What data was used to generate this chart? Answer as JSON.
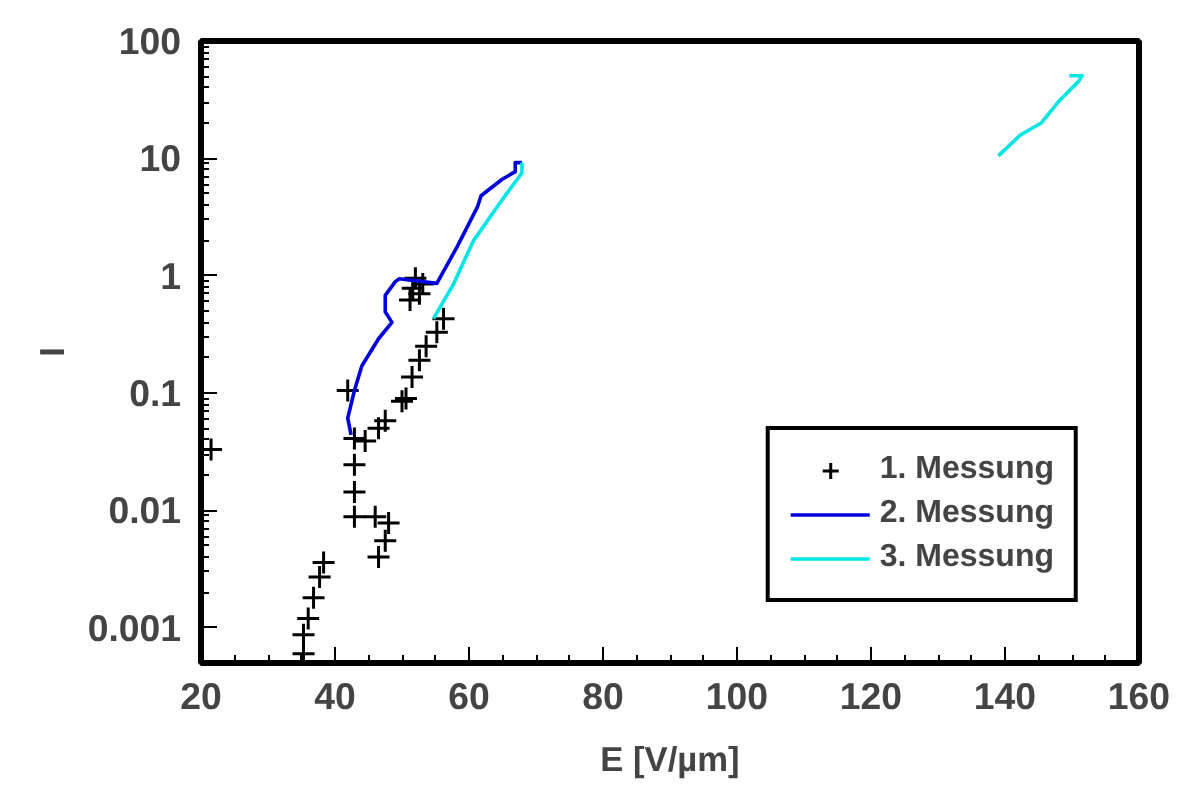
{
  "chart_data": {
    "type": "line",
    "xlabel": "E [V/µm]",
    "ylabel": "I",
    "log": "y",
    "grid": false,
    "legend": "bottom right",
    "xlim": [
      20,
      160
    ],
    "xticks": [
      20,
      40,
      60,
      80,
      100,
      120,
      140,
      160
    ],
    "ylim": [
      0.0005,
      100
    ],
    "yticks": [
      0.001,
      0.01,
      0.1,
      1,
      10,
      100
    ],
    "series": [
      {
        "name": "1. Messung",
        "type": "scatter",
        "marker": "cross",
        "color": "#000000",
        "x": [
          21.5,
          35.3,
          35.3,
          36,
          36.8,
          37.7,
          38.3,
          41.9,
          42.9,
          42.9,
          42.9,
          42.9,
          44.5,
          46.5,
          47.5,
          50,
          50.6,
          51.5,
          52.6,
          53.6,
          55.2,
          56.2,
          46,
          48,
          47.5,
          46.5,
          52,
          51.6,
          51.2,
          52.6,
          53.1
        ],
        "values": [
          0.033,
          0.0006,
          0.00087,
          0.0012,
          0.0018,
          0.0027,
          0.0036,
          0.105,
          0.041,
          0.0245,
          0.0143,
          0.0088,
          0.039,
          0.05,
          0.058,
          0.085,
          0.09,
          0.137,
          0.19,
          0.25,
          0.33,
          0.43,
          0.0088,
          0.0078,
          0.0055,
          0.004,
          0.95,
          0.78,
          0.62,
          0.7,
          0.85
        ]
      },
      {
        "name": "2. Messung",
        "color": "#0000dd",
        "x": [
          42.4,
          41.9,
          42.9,
          44,
          46.5,
          48.5,
          47.5,
          47.5,
          49,
          49.6,
          55.2,
          58.2,
          61.3,
          61.8,
          64.9,
          66.9,
          66.9,
          67.9
        ],
        "values": [
          0.044,
          0.061,
          0.105,
          0.17,
          0.29,
          0.4,
          0.49,
          0.68,
          0.89,
          0.94,
          0.86,
          1.75,
          3.9,
          4.8,
          6.6,
          7.7,
          9.2,
          9.2
        ]
      },
      {
        "name": "3. Messung",
        "color": "#00e5e5",
        "x": [
          54.7,
          57.6,
          60.7,
          64.9,
          67.9,
          67.9,
          100,
          139,
          142.3,
          145.4,
          148,
          151,
          151.5,
          149.6
        ],
        "values": [
          0.43,
          0.83,
          2,
          4.4,
          7.5,
          9.2,
          null,
          10.5,
          15.8,
          20,
          30.5,
          45.5,
          50.5,
          50.5
        ]
      }
    ]
  }
}
